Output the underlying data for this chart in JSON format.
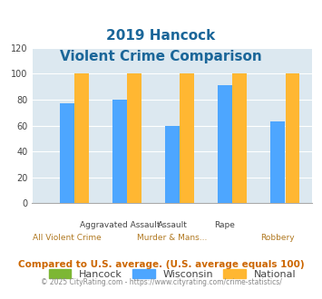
{
  "title_line1": "2019 Hancock",
  "title_line2": "Violent Crime Comparison",
  "categories": [
    "All Violent Crime",
    "Aggravated Assault",
    "Murder & Mans...",
    "Rape",
    "Robbery"
  ],
  "line1_labels": [
    "",
    "Aggravated Assault",
    "Assault",
    "Rape",
    ""
  ],
  "line2_labels": [
    "All Violent Crime",
    "",
    "Murder & Mans...",
    "",
    "Robbery"
  ],
  "hancock_values": [
    0,
    0,
    0,
    0,
    0
  ],
  "wisconsin_values": [
    77,
    80,
    60,
    91,
    63
  ],
  "national_values": [
    100,
    100,
    100,
    100,
    100
  ],
  "hancock_color": "#7db734",
  "wisconsin_color": "#4da6ff",
  "national_color": "#ffb732",
  "ylim": [
    0,
    120
  ],
  "yticks": [
    0,
    20,
    40,
    60,
    80,
    100,
    120
  ],
  "background_color": "#dce8f0",
  "title_color": "#1a6699",
  "legend_label_color": "#444444",
  "footer_text": "Compared to U.S. average. (U.S. average equals 100)",
  "copyright_text": "© 2025 CityRating.com - https://www.cityrating.com/crime-statistics/",
  "footer_color": "#cc6600",
  "copyright_color": "#888888",
  "x_label1_color": "#444444",
  "x_label2_color": "#b07820"
}
